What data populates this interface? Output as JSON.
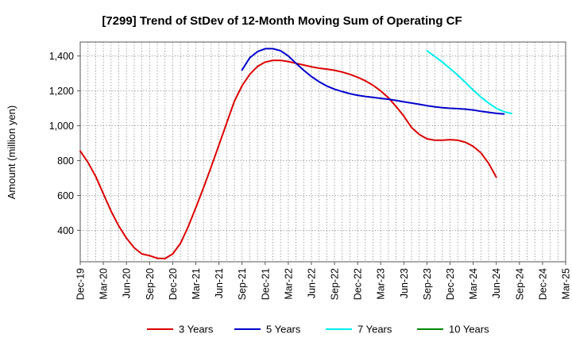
{
  "chart_data": {
    "type": "line",
    "title": "[7299]  Trend of StDev of 12-Month Moving Sum of Operating CF",
    "ylabel": "Amount (million yen)",
    "xlabel": "",
    "ylim": [
      220,
      1480
    ],
    "yticks": [
      400,
      600,
      800,
      1000,
      1200,
      1400
    ],
    "ytick_labels": [
      "400",
      "600",
      "800",
      "1,000",
      "1,200",
      "1,400"
    ],
    "x_start": "Dec-19",
    "x_months": 63,
    "xtick_labels": [
      "Dec-19",
      "Mar-20",
      "Jun-20",
      "Sep-20",
      "Dec-20",
      "Mar-21",
      "Jun-21",
      "Sep-21",
      "Dec-21",
      "Mar-22",
      "Jun-22",
      "Sep-22",
      "Dec-22",
      "Mar-23",
      "Jun-23",
      "Sep-23",
      "Dec-23",
      "Mar-24",
      "Jun-24",
      "Sep-24",
      "Dec-24",
      "Mar-25"
    ],
    "grid": true,
    "legend_position": "bottom",
    "series": [
      {
        "name": "3 Years",
        "color": "#dd0000",
        "start_index": 0,
        "values": [
          855,
          790,
          710,
          610,
          510,
          425,
          355,
          300,
          265,
          255,
          240,
          238,
          265,
          325,
          420,
          530,
          645,
          765,
          890,
          1015,
          1140,
          1230,
          1295,
          1340,
          1365,
          1375,
          1375,
          1368,
          1358,
          1348,
          1338,
          1330,
          1325,
          1318,
          1308,
          1295,
          1278,
          1258,
          1232,
          1200,
          1160,
          1110,
          1055,
          990,
          950,
          925,
          917,
          917,
          920,
          917,
          905,
          882,
          845,
          785,
          705
        ]
      },
      {
        "name": "5 Years",
        "color": "#0000cc",
        "start_index": 21,
        "values": [
          1320,
          1390,
          1425,
          1442,
          1442,
          1430,
          1400,
          1358,
          1318,
          1282,
          1252,
          1228,
          1210,
          1196,
          1184,
          1175,
          1168,
          1163,
          1157,
          1152,
          1145,
          1137,
          1130,
          1123,
          1115,
          1109,
          1104,
          1100,
          1098,
          1095,
          1090,
          1083,
          1077,
          1071,
          1067
        ]
      },
      {
        "name": "7 Years",
        "color": "#00eeee",
        "start_index": 45,
        "values": [
          1430,
          1398,
          1365,
          1328,
          1290,
          1248,
          1205,
          1165,
          1130,
          1100,
          1080,
          1070
        ]
      },
      {
        "name": "10 Years",
        "color": "#008800",
        "start_index": 45,
        "values": []
      }
    ]
  }
}
